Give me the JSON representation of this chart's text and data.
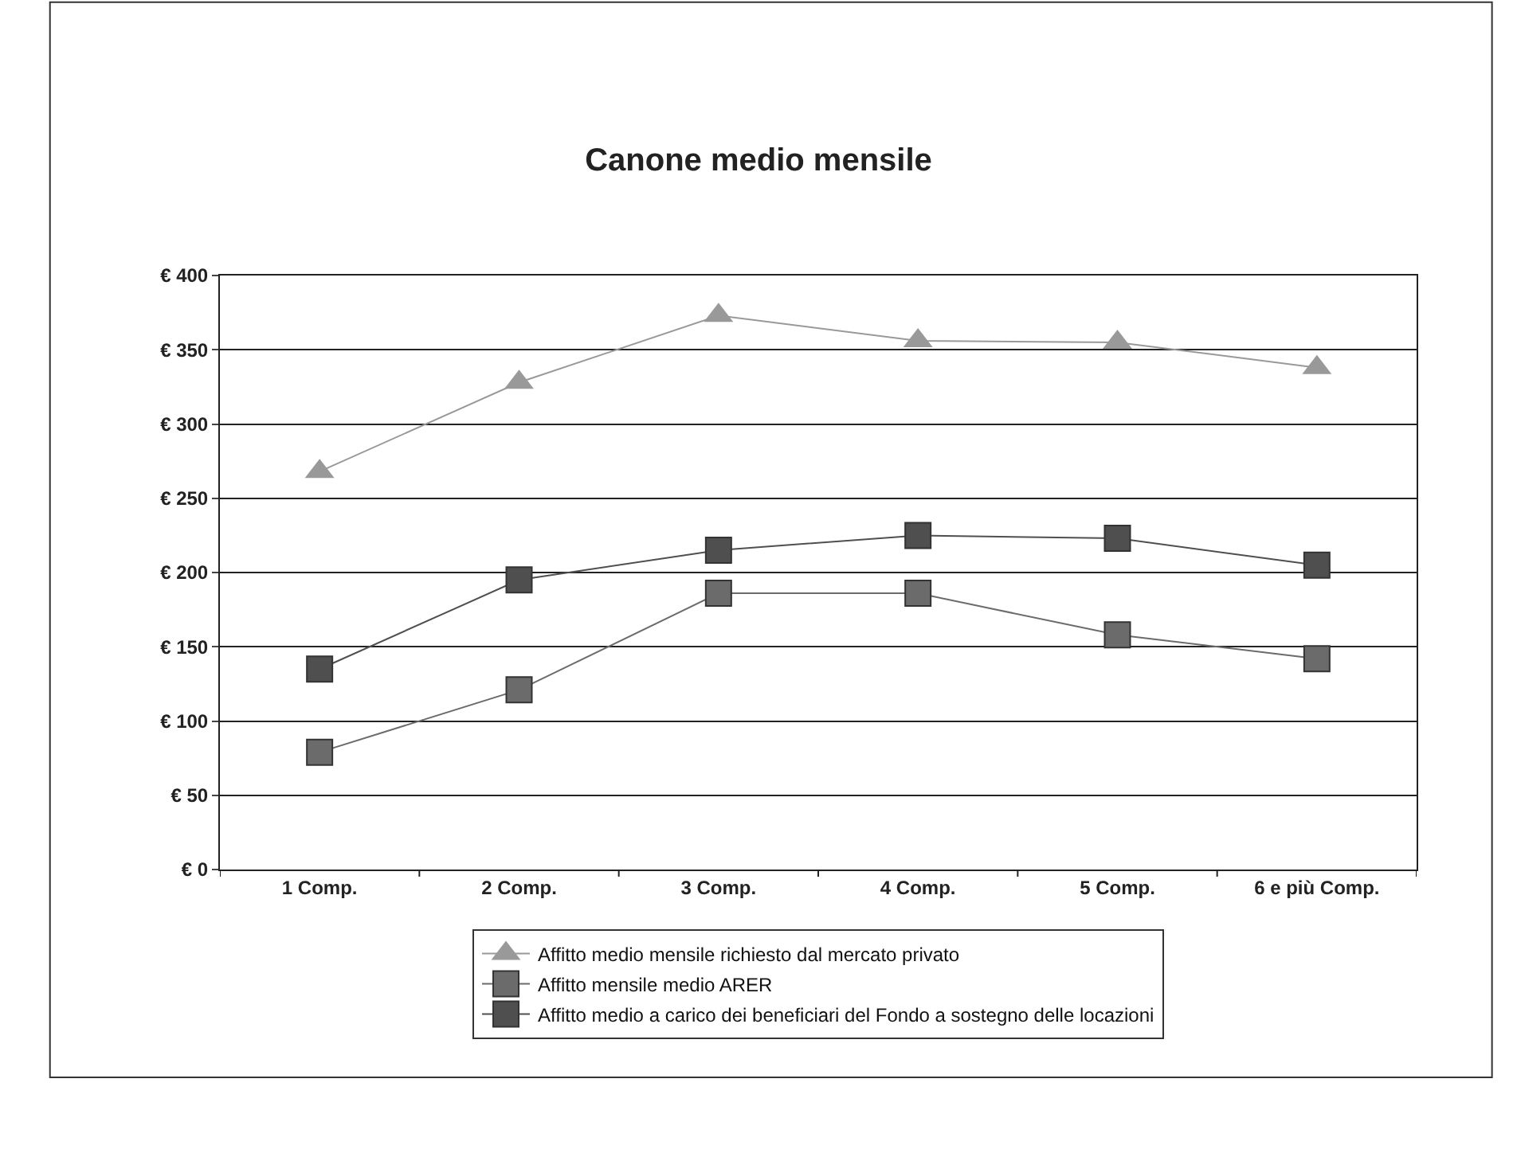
{
  "chart_data": {
    "type": "line",
    "title": "Canone medio mensile",
    "categories": [
      "1 Comp.",
      "2 Comp.",
      "3 Comp.",
      "4 Comp.",
      "5 Comp.",
      "6 e più Comp."
    ],
    "series": [
      {
        "name": "Affitto medio mensile richiesto dal mercato privato",
        "color": "#999999",
        "marker": "triangle",
        "values": [
          268,
          328,
          373,
          356,
          355,
          338
        ]
      },
      {
        "name": "Affitto mensile medio ARER",
        "color": "#6b6b6b",
        "marker": "square",
        "values": [
          79,
          121,
          186,
          186,
          158,
          142
        ]
      },
      {
        "name": "Affitto medio a carico dei beneficiari del Fondo a sostegno delle locazioni",
        "color": "#4f4f4f",
        "marker": "square",
        "values": [
          135,
          195,
          215,
          225,
          223,
          205
        ]
      }
    ],
    "ylim": [
      0,
      400
    ],
    "yticks": [
      {
        "value": 0,
        "label": "€ 0"
      },
      {
        "value": 50,
        "label": "€ 50"
      },
      {
        "value": 100,
        "label": "€ 100"
      },
      {
        "value": 150,
        "label": "€ 150"
      },
      {
        "value": 200,
        "label": "€ 200"
      },
      {
        "value": 250,
        "label": "€ 250"
      },
      {
        "value": 300,
        "label": "€ 300"
      },
      {
        "value": 350,
        "label": "€ 350"
      },
      {
        "value": 400,
        "label": "€ 400"
      }
    ],
    "grid": "y",
    "legend": "bottom",
    "line_style": "solid"
  }
}
